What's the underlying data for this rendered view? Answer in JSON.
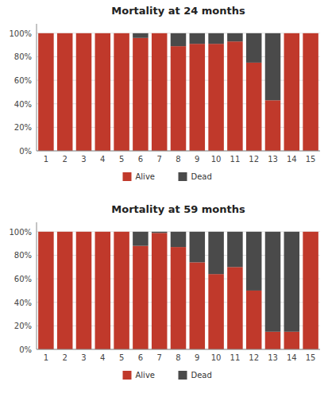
{
  "chart_data": [
    {
      "type": "bar",
      "stacked": true,
      "title": "Mortality at 24 months",
      "categories": [
        1,
        2,
        3,
        4,
        5,
        6,
        7,
        8,
        9,
        10,
        11,
        12,
        13,
        14,
        15
      ],
      "series": [
        {
          "name": "Alive",
          "color": "#C0392B",
          "values": [
            100,
            100,
            100,
            100,
            100,
            96,
            100,
            89,
            91,
            91,
            93,
            75,
            43,
            100,
            100
          ]
        },
        {
          "name": "Dead",
          "color": "#4A4A4A",
          "values": [
            0,
            0,
            0,
            0,
            0,
            4,
            0,
            11,
            9,
            9,
            7,
            25,
            57,
            0,
            0
          ]
        }
      ],
      "ylim": [
        0,
        108
      ],
      "yticks": [
        {
          "value": 0,
          "label": "0%"
        },
        {
          "value": 20,
          "label": "20%"
        },
        {
          "value": 40,
          "label": "40%"
        },
        {
          "value": 60,
          "label": "60%"
        },
        {
          "value": 80,
          "label": "80%"
        },
        {
          "value": 100,
          "label": "100%"
        }
      ],
      "grid": true,
      "legend": "bottom"
    },
    {
      "type": "bar",
      "stacked": true,
      "title": "Mortality at 59 months",
      "categories": [
        1,
        2,
        3,
        4,
        5,
        6,
        7,
        8,
        9,
        10,
        11,
        12,
        13,
        14,
        15
      ],
      "series": [
        {
          "name": "Alive",
          "color": "#C0392B",
          "values": [
            100,
            100,
            100,
            100,
            100,
            88,
            99,
            87,
            74,
            64,
            70,
            50,
            15,
            15,
            100
          ]
        },
        {
          "name": "Dead",
          "color": "#4A4A4A",
          "values": [
            0,
            0,
            0,
            0,
            0,
            12,
            1,
            13,
            26,
            36,
            30,
            50,
            85,
            85,
            0
          ]
        }
      ],
      "ylim": [
        0,
        108
      ],
      "yticks": [
        {
          "value": 0,
          "label": "0%"
        },
        {
          "value": 20,
          "label": "20%"
        },
        {
          "value": 40,
          "label": "40%"
        },
        {
          "value": 60,
          "label": "60%"
        },
        {
          "value": 80,
          "label": "80%"
        },
        {
          "value": 100,
          "label": "100%"
        }
      ],
      "grid": true,
      "legend": "bottom"
    }
  ]
}
